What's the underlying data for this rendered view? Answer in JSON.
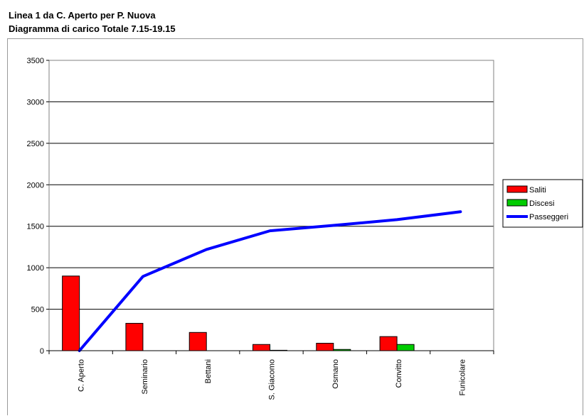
{
  "title_line1": "Linea 1 da C. Aperto per P. Nuova",
  "title_line2": "Diagramma di carico Totale 7.15-19.15",
  "colors": {
    "saliti": "#ff0000",
    "discesi": "#00cc00",
    "passeggeri": "#0000ff",
    "grid": "#000000",
    "plot_border": "#808080"
  },
  "chart_data": {
    "type": "bar",
    "title": "Linea 1 da C. Aperto per P. Nuova",
    "subtitle": "Diagramma di carico Totale 7.15-19.15",
    "categories": [
      "C. Aperto",
      "Seminario",
      "Bettani",
      "S. Giacomo",
      "Osmano",
      "Convitto",
      "Funicolare"
    ],
    "ylim": [
      0,
      3500
    ],
    "yticks": [
      0,
      500,
      1000,
      1500,
      2000,
      2500,
      3000,
      3500
    ],
    "grid": true,
    "legend_position": "right",
    "series": [
      {
        "name": "Saliti",
        "kind": "bar",
        "values": [
          900,
          330,
          220,
          75,
          90,
          170,
          0
        ]
      },
      {
        "name": "Discesi",
        "kind": "bar",
        "values": [
          0,
          0,
          0,
          5,
          15,
          75,
          0
        ]
      },
      {
        "name": "Passeggeri",
        "kind": "line",
        "values": [
          0,
          895,
          1220,
          1445,
          1510,
          1580,
          1675
        ]
      }
    ]
  }
}
